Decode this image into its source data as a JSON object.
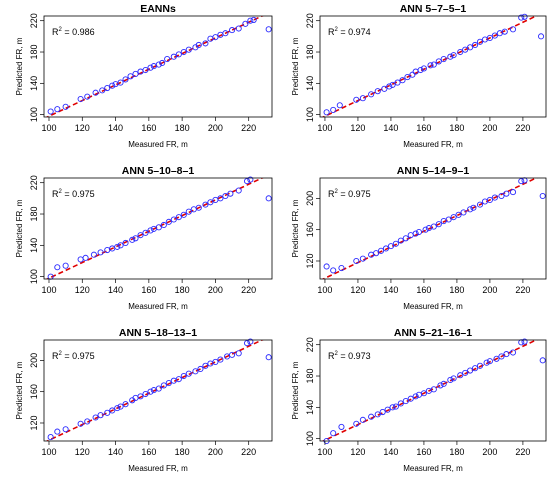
{
  "chart_data": [
    {
      "type": "scatter",
      "title": "EANNs",
      "xlabel": "Measured FR, m",
      "ylabel": "Predicted FR, m",
      "r2_label": "R",
      "r2_sup": "2",
      "r2_value": " = 0.986",
      "xlim": [
        97,
        234
      ],
      "ylim": [
        97,
        226
      ],
      "xticks": [
        100,
        120,
        140,
        160,
        180,
        200,
        220
      ],
      "yticks": [
        100,
        140,
        180,
        220
      ],
      "ref_line": [
        [
          97,
          95
        ],
        [
          234,
          232
        ]
      ],
      "colors": {
        "points": "#2b2bff",
        "line": "#e00000"
      },
      "series": [
        {
          "points": [
            [
              101,
              104
            ],
            [
              105,
              107
            ],
            [
              110,
              110
            ],
            [
              119,
              120
            ],
            [
              123,
              123
            ],
            [
              128,
              128
            ],
            [
              132,
              131
            ],
            [
              135,
              134
            ],
            [
              138,
              137
            ],
            [
              140,
              139
            ],
            [
              143,
              141
            ],
            [
              146,
              145
            ],
            [
              149,
              149
            ],
            [
              152,
              152
            ],
            [
              155,
              155
            ],
            [
              158,
              157
            ],
            [
              161,
              160
            ],
            [
              163,
              162
            ],
            [
              166,
              164
            ],
            [
              168,
              166
            ],
            [
              171,
              171
            ],
            [
              175,
              174
            ],
            [
              178,
              177
            ],
            [
              181,
              180
            ],
            [
              184,
              183
            ],
            [
              188,
              186
            ],
            [
              190,
              189
            ],
            [
              194,
              191
            ],
            [
              197,
              197
            ],
            [
              200,
              199
            ],
            [
              203,
              202
            ],
            [
              206,
              204
            ],
            [
              210,
              208
            ],
            [
              214,
              210
            ],
            [
              218,
              216
            ],
            [
              221,
              220
            ],
            [
              223,
              221
            ],
            [
              232,
              209
            ]
          ]
        }
      ]
    },
    {
      "type": "scatter",
      "title": "ANN 5–7–5–1",
      "xlabel": "Measured FR, m",
      "ylabel": "Predicted FR, m",
      "r2_label": "R",
      "r2_sup": "2",
      "r2_value": " = 0.974",
      "xlim": [
        97,
        234
      ],
      "ylim": [
        97,
        226
      ],
      "xticks": [
        100,
        120,
        140,
        160,
        180,
        200,
        220
      ],
      "yticks": [
        100,
        140,
        180,
        220
      ],
      "ref_line": [
        [
          97,
          95
        ],
        [
          234,
          232
        ]
      ],
      "colors": {
        "points": "#2b2bff",
        "line": "#e00000"
      },
      "series": [
        {
          "points": [
            [
              101,
              103
            ],
            [
              105,
              106
            ],
            [
              109,
              112
            ],
            [
              119,
              119
            ],
            [
              123,
              121
            ],
            [
              128,
              126
            ],
            [
              132,
              130
            ],
            [
              136,
              133
            ],
            [
              139,
              136
            ],
            [
              141,
              138
            ],
            [
              144,
              141
            ],
            [
              147,
              144
            ],
            [
              150,
              148
            ],
            [
              153,
              151
            ],
            [
              155,
              155
            ],
            [
              158,
              157
            ],
            [
              160,
              159
            ],
            [
              164,
              163
            ],
            [
              166,
              164
            ],
            [
              169,
              168
            ],
            [
              172,
              171
            ],
            [
              176,
              174
            ],
            [
              178,
              176
            ],
            [
              182,
              180
            ],
            [
              185,
              183
            ],
            [
              188,
              186
            ],
            [
              191,
              189
            ],
            [
              194,
              193
            ],
            [
              197,
              196
            ],
            [
              200,
              198
            ],
            [
              203,
              201
            ],
            [
              206,
              204
            ],
            [
              209,
              206
            ],
            [
              214,
              209
            ],
            [
              219,
              224
            ],
            [
              221,
              225
            ],
            [
              231,
              200
            ]
          ]
        }
      ]
    },
    {
      "type": "scatter",
      "title": "ANN 5–10–8–1",
      "xlabel": "Measured FR, m",
      "ylabel": "Predicted FR, m",
      "r2_label": "R",
      "r2_sup": "2",
      "r2_value": " = 0.975",
      "xlim": [
        97,
        234
      ],
      "ylim": [
        97,
        226
      ],
      "xticks": [
        100,
        120,
        140,
        160,
        180,
        200,
        220
      ],
      "yticks": [
        100,
        140,
        180,
        220
      ],
      "ref_line": [
        [
          97,
          95
        ],
        [
          234,
          232
        ]
      ],
      "colors": {
        "points": "#2b2bff",
        "line": "#e00000"
      },
      "series": [
        {
          "points": [
            [
              101,
              100
            ],
            [
              105,
              112
            ],
            [
              110,
              114
            ],
            [
              119,
              122
            ],
            [
              122,
              124
            ],
            [
              127,
              128
            ],
            [
              131,
              131
            ],
            [
              135,
              134
            ],
            [
              138,
              136
            ],
            [
              141,
              138
            ],
            [
              143,
              140
            ],
            [
              146,
              143
            ],
            [
              150,
              147
            ],
            [
              152,
              149
            ],
            [
              155,
              153
            ],
            [
              158,
              156
            ],
            [
              161,
              159
            ],
            [
              163,
              161
            ],
            [
              166,
              163
            ],
            [
              169,
              166
            ],
            [
              172,
              170
            ],
            [
              175,
              173
            ],
            [
              178,
              176
            ],
            [
              181,
              179
            ],
            [
              184,
              183
            ],
            [
              187,
              186
            ],
            [
              190,
              188
            ],
            [
              194,
              192
            ],
            [
              197,
              195
            ],
            [
              200,
              198
            ],
            [
              203,
              200
            ],
            [
              206,
              203
            ],
            [
              209,
              206
            ],
            [
              214,
              210
            ],
            [
              219,
              222
            ],
            [
              221,
              224
            ],
            [
              232,
              200
            ]
          ]
        }
      ]
    },
    {
      "type": "scatter",
      "title": "ANN 5–14–9–1",
      "xlabel": "Measured FR, m",
      "ylabel": "Predicted FR, m",
      "r2_label": "R",
      "r2_sup": "2",
      "r2_value": " = 0.975",
      "xlim": [
        97,
        234
      ],
      "ylim": [
        97,
        226
      ],
      "xticks": [
        100,
        120,
        140,
        160,
        180,
        200,
        220
      ],
      "yticks": [
        120,
        160,
        200
      ],
      "ref_line": [
        [
          97,
          95
        ],
        [
          234,
          232
        ]
      ],
      "colors": {
        "points": "#2b2bff",
        "line": "#e00000"
      },
      "series": [
        {
          "points": [
            [
              101,
              113
            ],
            [
              105,
              108
            ],
            [
              110,
              111
            ],
            [
              119,
              120
            ],
            [
              123,
              123
            ],
            [
              128,
              128
            ],
            [
              131,
              130
            ],
            [
              134,
              133
            ],
            [
              137,
              136
            ],
            [
              140,
              139
            ],
            [
              143,
              142
            ],
            [
              146,
              146
            ],
            [
              149,
              149
            ],
            [
              152,
              153
            ],
            [
              155,
              155
            ],
            [
              157,
              157
            ],
            [
              161,
              160
            ],
            [
              163,
              162
            ],
            [
              166,
              164
            ],
            [
              169,
              167
            ],
            [
              172,
              171
            ],
            [
              175,
              173
            ],
            [
              178,
              176
            ],
            [
              181,
              179
            ],
            [
              184,
              182
            ],
            [
              188,
              186
            ],
            [
              190,
              188
            ],
            [
              194,
              192
            ],
            [
              197,
              196
            ],
            [
              200,
              198
            ],
            [
              203,
              201
            ],
            [
              207,
              203
            ],
            [
              210,
              206
            ],
            [
              214,
              208
            ],
            [
              219,
              222
            ],
            [
              221,
              223
            ],
            [
              232,
              203
            ]
          ]
        }
      ]
    },
    {
      "type": "scatter",
      "title": "ANN 5–18–13–1",
      "xlabel": "Measured FR, m",
      "ylabel": "Predicted FR, m",
      "r2_label": "R",
      "r2_sup": "2",
      "r2_value": " = 0.975",
      "xlim": [
        97,
        234
      ],
      "ylim": [
        97,
        226
      ],
      "xticks": [
        100,
        120,
        140,
        160,
        180,
        200,
        220
      ],
      "yticks": [
        120,
        160,
        200
      ],
      "ref_line": [
        [
          97,
          95
        ],
        [
          234,
          232
        ]
      ],
      "colors": {
        "points": "#2b2bff",
        "line": "#e00000"
      },
      "series": [
        {
          "points": [
            [
              101,
              102
            ],
            [
              105,
              109
            ],
            [
              110,
              112
            ],
            [
              119,
              119
            ],
            [
              123,
              122
            ],
            [
              128,
              127
            ],
            [
              131,
              130
            ],
            [
              135,
              133
            ],
            [
              138,
              136
            ],
            [
              141,
              139
            ],
            [
              143,
              141
            ],
            [
              146,
              144
            ],
            [
              150,
              149
            ],
            [
              152,
              152
            ],
            [
              155,
              154
            ],
            [
              158,
              157
            ],
            [
              161,
              160
            ],
            [
              163,
              162
            ],
            [
              166,
              164
            ],
            [
              169,
              168
            ],
            [
              172,
              171
            ],
            [
              175,
              174
            ],
            [
              178,
              176
            ],
            [
              181,
              180
            ],
            [
              184,
              183
            ],
            [
              188,
              186
            ],
            [
              191,
              189
            ],
            [
              194,
              193
            ],
            [
              197,
              196
            ],
            [
              200,
              198
            ],
            [
              203,
              201
            ],
            [
              207,
              205
            ],
            [
              210,
              207
            ],
            [
              214,
              209
            ],
            [
              219,
              222
            ],
            [
              221,
              224
            ],
            [
              232,
              204
            ]
          ]
        }
      ]
    },
    {
      "type": "scatter",
      "title": "ANN 5–21–16–1",
      "xlabel": "Measured FR, m",
      "ylabel": "Predicted FR, m",
      "r2_label": "R",
      "r2_sup": "2",
      "r2_value": " = 0.973",
      "xlim": [
        97,
        234
      ],
      "ylim": [
        97,
        226
      ],
      "xticks": [
        100,
        120,
        140,
        160,
        180,
        200,
        220
      ],
      "yticks": [
        100,
        140,
        180,
        220
      ],
      "ref_line": [
        [
          97,
          95
        ],
        [
          234,
          232
        ]
      ],
      "colors": {
        "points": "#2b2bff",
        "line": "#e00000"
      },
      "series": [
        {
          "points": [
            [
              101,
              97
            ],
            [
              105,
              107
            ],
            [
              110,
              115
            ],
            [
              119,
              119
            ],
            [
              123,
              124
            ],
            [
              128,
              128
            ],
            [
              132,
              131
            ],
            [
              135,
              134
            ],
            [
              138,
              137
            ],
            [
              141,
              140
            ],
            [
              143,
              141
            ],
            [
              146,
              145
            ],
            [
              149,
              148
            ],
            [
              152,
              151
            ],
            [
              155,
              154
            ],
            [
              157,
              156
            ],
            [
              160,
              158
            ],
            [
              163,
              161
            ],
            [
              166,
              163
            ],
            [
              170,
              168
            ],
            [
              172,
              170
            ],
            [
              176,
              175
            ],
            [
              178,
              177
            ],
            [
              182,
              181
            ],
            [
              185,
              184
            ],
            [
              188,
              187
            ],
            [
              191,
              190
            ],
            [
              194,
              193
            ],
            [
              198,
              197
            ],
            [
              200,
              199
            ],
            [
              204,
              202
            ],
            [
              207,
              205
            ],
            [
              210,
              208
            ],
            [
              214,
              210
            ],
            [
              219,
              223
            ],
            [
              221,
              224
            ],
            [
              232,
              200
            ]
          ]
        }
      ]
    }
  ]
}
